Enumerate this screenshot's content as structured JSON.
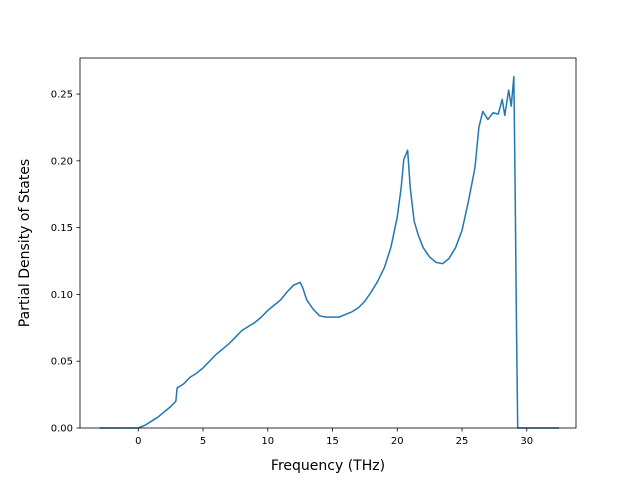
{
  "chart_data": {
    "type": "line",
    "title": "",
    "xlabel": "Frequency (THz)",
    "ylabel": "Partial Density of States",
    "xlim": [
      -4.5,
      33.8
    ],
    "ylim": [
      0.0,
      0.277
    ],
    "xticks": [
      0,
      5,
      10,
      15,
      20,
      25,
      30
    ],
    "xtick_labels": [
      "0",
      "5",
      "10",
      "15",
      "20",
      "25",
      "30"
    ],
    "yticks": [
      0.0,
      0.05,
      0.1,
      0.15,
      0.2,
      0.25
    ],
    "ytick_labels": [
      "0.00",
      "0.05",
      "0.10",
      "0.15",
      "0.20",
      "0.25"
    ],
    "grid": false,
    "line_color": "#1f77b4",
    "series": [
      {
        "x": [
          -3.0,
          0.0,
          0.5,
          1.0,
          1.5,
          2.0,
          2.5,
          2.9,
          3.0,
          3.5,
          4.0,
          4.5,
          5.0,
          5.5,
          6.0,
          6.5,
          7.0,
          7.5,
          8.0,
          8.5,
          9.0,
          9.5,
          10.0,
          10.5,
          11.0,
          11.5,
          12.0,
          12.5,
          12.7,
          13.0,
          13.5,
          14.0,
          14.5,
          15.0,
          15.5,
          16.0,
          16.5,
          17.0,
          17.5,
          18.0,
          18.5,
          19.0,
          19.5,
          20.0,
          20.3,
          20.5,
          20.8,
          21.0,
          21.3,
          21.6,
          22.0,
          22.5,
          23.0,
          23.5,
          24.0,
          24.5,
          25.0,
          25.5,
          26.0,
          26.3,
          26.6,
          27.0,
          27.4,
          27.8,
          28.1,
          28.3,
          28.6,
          28.8,
          29.0,
          29.1,
          29.2,
          29.3,
          29.6,
          32.5
        ],
        "values": [
          0.0,
          0.0,
          0.002,
          0.005,
          0.008,
          0.012,
          0.016,
          0.02,
          0.03,
          0.033,
          0.038,
          0.041,
          0.045,
          0.05,
          0.055,
          0.059,
          0.063,
          0.068,
          0.073,
          0.076,
          0.079,
          0.083,
          0.088,
          0.092,
          0.096,
          0.102,
          0.107,
          0.109,
          0.105,
          0.096,
          0.089,
          0.084,
          0.083,
          0.083,
          0.083,
          0.085,
          0.087,
          0.09,
          0.095,
          0.102,
          0.11,
          0.12,
          0.135,
          0.158,
          0.18,
          0.201,
          0.208,
          0.18,
          0.155,
          0.145,
          0.135,
          0.128,
          0.124,
          0.123,
          0.127,
          0.135,
          0.148,
          0.17,
          0.195,
          0.225,
          0.237,
          0.231,
          0.236,
          0.235,
          0.246,
          0.234,
          0.253,
          0.241,
          0.263,
          0.18,
          0.08,
          0.0,
          0.0,
          0.0
        ]
      }
    ]
  }
}
